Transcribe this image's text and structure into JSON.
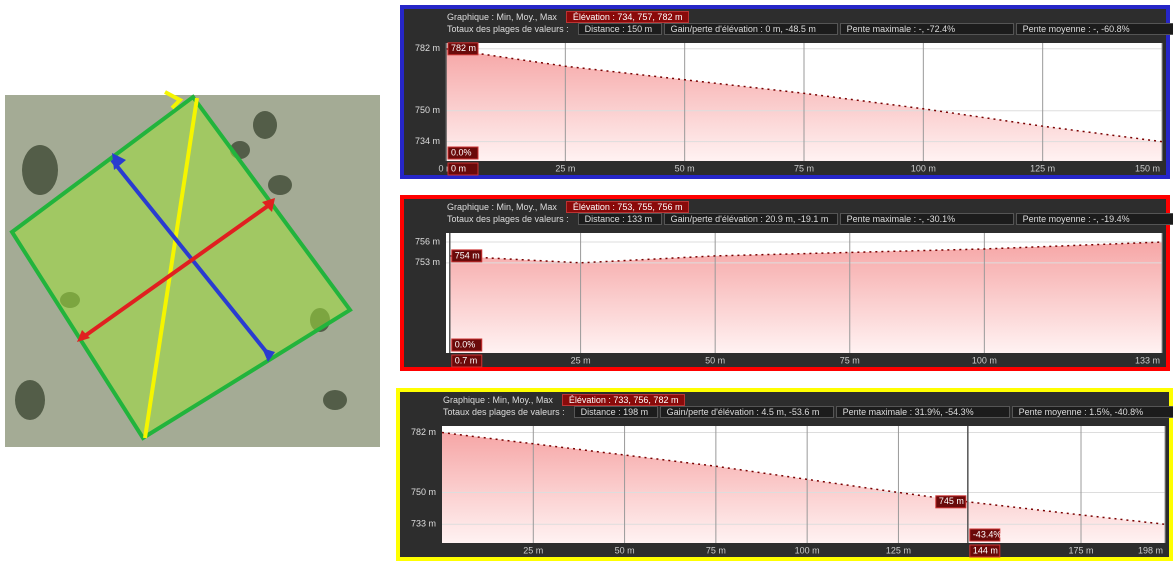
{
  "chart_data": [
    {
      "type": "area",
      "border_color": "#2626c8",
      "header": {
        "graph": "Graphique : Min, Moy., Max",
        "elevation": "Élévation : 734, 757, 782 m",
        "totals": "Totaux des plages de valeurs :",
        "distance": "Distance : 150 m",
        "gain_loss": "Gain/perte d'élévation : 0 m, -48.5 m",
        "max_slope": "Pente maximale : -, -72.4%",
        "avg_slope": "Pente moyenne : -, -60.8%"
      },
      "x": [
        0,
        25,
        50,
        75,
        100,
        125,
        150
      ],
      "values": [
        782,
        773,
        766,
        759,
        751,
        742,
        734
      ],
      "xlim": [
        0,
        150
      ],
      "ylim": [
        724,
        785
      ],
      "xticks": [
        {
          "value": 0,
          "label": "0 m"
        },
        {
          "value": 25,
          "label": "25 m"
        },
        {
          "value": 50,
          "label": "50 m"
        },
        {
          "value": 75,
          "label": "75 m"
        },
        {
          "value": 100,
          "label": "100 m"
        },
        {
          "value": 125,
          "label": "125 m"
        },
        {
          "value": 150,
          "label": "150 m"
        }
      ],
      "yticks": [
        {
          "value": 782,
          "label": "782 m"
        },
        {
          "value": 750,
          "label": "750 m"
        },
        {
          "value": 734,
          "label": "734 m"
        }
      ],
      "cursor": {
        "x": {
          "value": 0,
          "label": "0 m"
        },
        "y": {
          "value": 782,
          "label": "782 m"
        },
        "slope": "0.0%"
      }
    },
    {
      "type": "area",
      "border_color": "#ff0000",
      "header": {
        "graph": "Graphique : Min, Moy., Max",
        "elevation": "Élévation : 753, 755, 756 m",
        "totals": "Totaux des plages de valeurs :",
        "distance": "Distance : 133 m",
        "gain_loss": "Gain/perte d'élévation : 20.9 m, -19.1 m",
        "max_slope": "Pente maximale : -, -30.1%",
        "avg_slope": "Pente moyenne : -, -19.4%"
      },
      "x": [
        0.7,
        25,
        50,
        75,
        100,
        133
      ],
      "values": [
        754,
        753,
        754,
        754.5,
        755,
        756
      ],
      "xlim": [
        0,
        133
      ],
      "ylim": [
        740,
        757.3
      ],
      "xticks": [
        {
          "value": 25,
          "label": "25 m"
        },
        {
          "value": 50,
          "label": "50 m"
        },
        {
          "value": 75,
          "label": "75 m"
        },
        {
          "value": 100,
          "label": "100 m"
        },
        {
          "value": 133,
          "label": "133 m"
        }
      ],
      "yticks": [
        {
          "value": 756,
          "label": "756 m"
        },
        {
          "value": 753,
          "label": "753 m"
        }
      ],
      "cursor": {
        "x": {
          "value": 0.7,
          "label": "0.7 m"
        },
        "y": {
          "value": 754,
          "label": "754 m"
        },
        "slope": "0.0%"
      }
    },
    {
      "type": "area",
      "border_color": "#ffff00",
      "header": {
        "graph": "Graphique : Min, Moy., Max",
        "elevation": "Élévation : 733, 756, 782 m",
        "totals": "Totaux des plages de valeurs :",
        "distance": "Distance : 198 m",
        "gain_loss": "Gain/perte d'élévation : 4.5 m, -53.6 m",
        "max_slope": "Pente maximale : 31.9%, -54.3%",
        "avg_slope": "Pente moyenne : 1.5%, -40.8%"
      },
      "x": [
        0,
        25,
        50,
        75,
        100,
        125,
        144,
        175,
        198
      ],
      "values": [
        782,
        776,
        770,
        764,
        757,
        750,
        745,
        738,
        733
      ],
      "xlim": [
        0,
        198
      ],
      "ylim": [
        723,
        785.5
      ],
      "xticks": [
        {
          "value": 25,
          "label": "25 m"
        },
        {
          "value": 50,
          "label": "50 m"
        },
        {
          "value": 75,
          "label": "75 m"
        },
        {
          "value": 100,
          "label": "100 m"
        },
        {
          "value": 125,
          "label": "125 m"
        },
        {
          "value": 175,
          "label": "175 m"
        },
        {
          "value": 198,
          "label": "198 m"
        }
      ],
      "yticks": [
        {
          "value": 782,
          "label": "782 m"
        },
        {
          "value": 750,
          "label": "750 m"
        },
        {
          "value": 733,
          "label": "733 m"
        }
      ],
      "cursor": {
        "x": {
          "value": 144,
          "label": "144 m"
        },
        "y": {
          "value": 745,
          "label": "745 m"
        },
        "slope": "-43.4%"
      }
    }
  ]
}
